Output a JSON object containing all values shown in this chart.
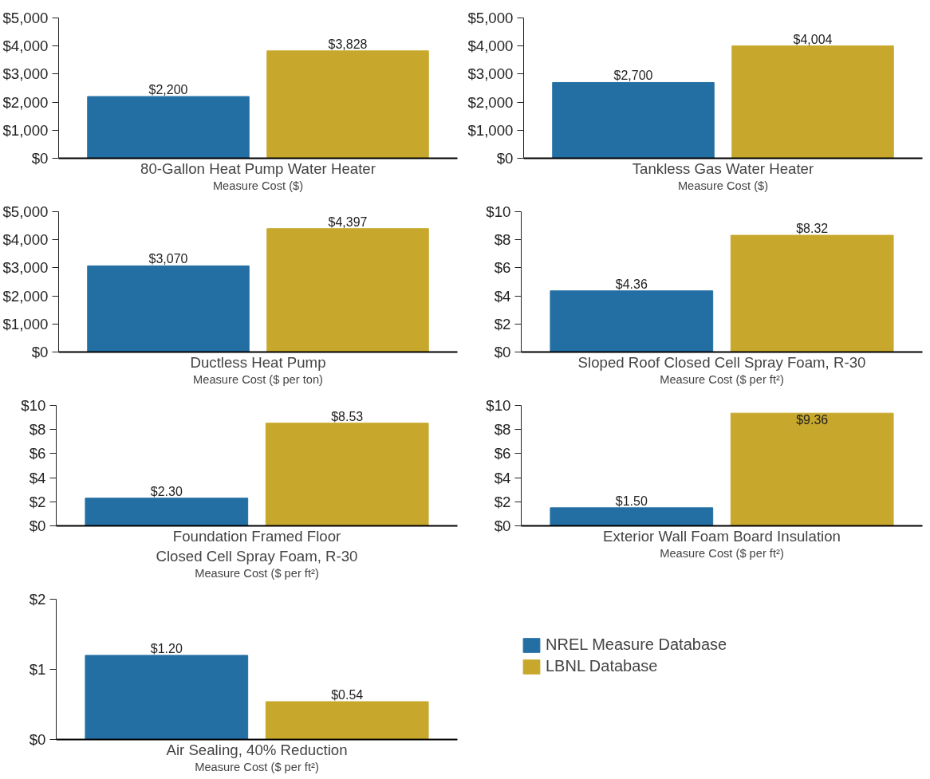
{
  "chart_data": [
    {
      "type": "bar",
      "xlabel": "80-Gallon Heat Pump Water Heater",
      "annotations": [
        "Measure Cost ($)"
      ],
      "categories": [
        null
      ],
      "ylim": [
        0,
        5000
      ],
      "yticks": [
        {
          "value": 0,
          "label": "$0"
        },
        {
          "value": 1000,
          "label": "$1,000"
        },
        {
          "value": 2000,
          "label": "$2,000"
        },
        {
          "value": 3000,
          "label": "$3,000"
        },
        {
          "value": 4000,
          "label": "$4,000"
        },
        {
          "value": 5000,
          "label": "$5,000"
        }
      ],
      "grid": false,
      "series": [
        {
          "color": "#236fa4",
          "values": [
            2200
          ],
          "value_labels": [
            "$2,200"
          ]
        },
        {
          "color": "#c8a82c",
          "values": [
            3828
          ],
          "value_labels": [
            "$3,828"
          ]
        }
      ]
    },
    {
      "type": "bar",
      "xlabel": "Tankless Gas Water Heater",
      "annotations": [
        "Measure Cost ($)"
      ],
      "categories": [
        null
      ],
      "ylim": [
        0,
        5000
      ],
      "yticks": [
        {
          "value": 0,
          "label": "$0"
        },
        {
          "value": 1000,
          "label": "$1,000"
        },
        {
          "value": 2000,
          "label": "$2,000"
        },
        {
          "value": 3000,
          "label": "$3,000"
        },
        {
          "value": 4000,
          "label": "$4,000"
        },
        {
          "value": 5000,
          "label": "$5,000"
        }
      ],
      "grid": false,
      "series": [
        {
          "color": "#236fa4",
          "values": [
            2700
          ],
          "value_labels": [
            "$2,700"
          ]
        },
        {
          "color": "#c8a82c",
          "values": [
            4004
          ],
          "value_labels": [
            "$4,004"
          ]
        }
      ]
    },
    {
      "type": "bar",
      "xlabel": "Ductless Heat Pump",
      "annotations": [
        "Measure Cost ($ per ton)"
      ],
      "categories": [
        null
      ],
      "ylim": [
        0,
        5000
      ],
      "yticks": [
        {
          "value": 0,
          "label": "$0"
        },
        {
          "value": 1000,
          "label": "$1,000"
        },
        {
          "value": 2000,
          "label": "$2,000"
        },
        {
          "value": 3000,
          "label": "$3,000"
        },
        {
          "value": 4000,
          "label": "$4,000"
        },
        {
          "value": 5000,
          "label": "$5,000"
        }
      ],
      "grid": false,
      "series": [
        {
          "color": "#236fa4",
          "values": [
            3070
          ],
          "value_labels": [
            "$3,070"
          ]
        },
        {
          "color": "#c8a82c",
          "values": [
            4397
          ],
          "value_labels": [
            "$4,397"
          ]
        }
      ]
    },
    {
      "type": "bar",
      "xlabel": "Sloped Roof Closed Cell Spray Foam, R-30",
      "annotations": [
        "Measure Cost ($ per ft²)"
      ],
      "categories": [
        null
      ],
      "ylim": [
        0,
        10
      ],
      "yticks": [
        {
          "value": 0,
          "label": "$0"
        },
        {
          "value": 2,
          "label": "$2"
        },
        {
          "value": 4,
          "label": "$4"
        },
        {
          "value": 6,
          "label": "$6"
        },
        {
          "value": 8,
          "label": "$8"
        },
        {
          "value": 10,
          "label": "$10"
        }
      ],
      "grid": false,
      "series": [
        {
          "color": "#236fa4",
          "values": [
            4.36
          ],
          "value_labels": [
            "$4.36"
          ]
        },
        {
          "color": "#c8a82c",
          "values": [
            8.32
          ],
          "value_labels": [
            "$8.32"
          ]
        }
      ]
    },
    {
      "type": "bar",
      "xlabel": "Foundation Framed Floor\nClosed Cell Spray Foam, R-30",
      "annotations": [
        "Measure Cost ($ per ft²)"
      ],
      "categories": [
        null
      ],
      "ylim": [
        0,
        10
      ],
      "yticks": [
        {
          "value": 0,
          "label": "$0"
        },
        {
          "value": 2,
          "label": "$2"
        },
        {
          "value": 4,
          "label": "$4"
        },
        {
          "value": 6,
          "label": "$6"
        },
        {
          "value": 8,
          "label": "$8"
        },
        {
          "value": 10,
          "label": "$10"
        }
      ],
      "grid": false,
      "series": [
        {
          "color": "#236fa4",
          "values": [
            2.3
          ],
          "value_labels": [
            "$2.30"
          ]
        },
        {
          "color": "#c8a82c",
          "values": [
            8.53
          ],
          "value_labels": [
            "$8.53"
          ]
        }
      ]
    },
    {
      "type": "bar",
      "xlabel": "Exterior Wall Foam Board Insulation",
      "annotations": [
        "Measure Cost ($ per ft²)"
      ],
      "categories": [
        null
      ],
      "ylim": [
        0,
        10
      ],
      "yticks": [
        {
          "value": 0,
          "label": "$0"
        },
        {
          "value": 2,
          "label": "$2"
        },
        {
          "value": 4,
          "label": "$4"
        },
        {
          "value": 6,
          "label": "$6"
        },
        {
          "value": 8,
          "label": "$8"
        },
        {
          "value": 10,
          "label": "$10"
        }
      ],
      "grid": false,
      "series": [
        {
          "color": "#236fa4",
          "values": [
            1.5
          ],
          "value_labels": [
            "$1.50"
          ]
        },
        {
          "color": "#c8a82c",
          "values": [
            9.36
          ],
          "value_labels": [
            "$9.36"
          ]
        }
      ]
    },
    {
      "type": "bar",
      "xlabel": "Air Sealing, 40% Reduction",
      "annotations": [
        "Measure Cost ($ per ft²)"
      ],
      "categories": [
        null
      ],
      "ylim": [
        0,
        2
      ],
      "yticks": [
        {
          "value": 0,
          "label": "$0"
        },
        {
          "value": 1,
          "label": "$1"
        },
        {
          "value": 2,
          "label": "$2"
        }
      ],
      "grid": false,
      "legend": "right",
      "series": [
        {
          "name": "NREL Measure Database",
          "color": "#236fa4",
          "values": [
            1.2
          ],
          "value_labels": [
            "$1.20"
          ]
        },
        {
          "name": "LBNL Database",
          "color": "#c8a82c",
          "values": [
            0.54
          ],
          "value_labels": [
            "$0.54"
          ]
        }
      ]
    }
  ]
}
